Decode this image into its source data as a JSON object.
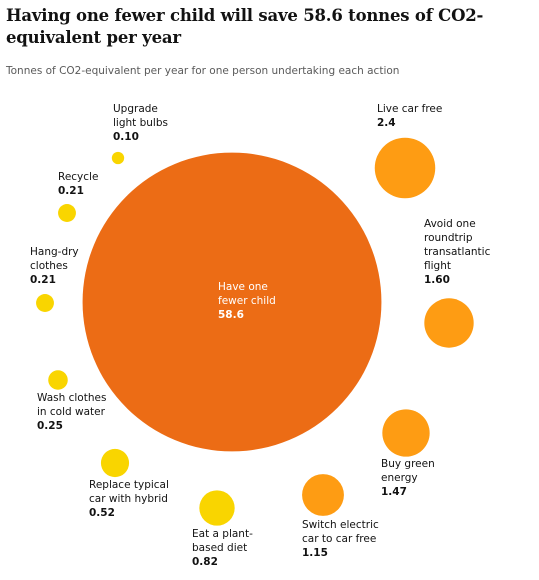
{
  "header": {
    "title": "Having one fewer child will save 58.6 tonnes of CO2-equivalent per year",
    "subtitle": "Tonnes of CO2-equivalent per year for one person undertaking each action"
  },
  "colors": {
    "large": "#ec6c15",
    "medium": "#fe9c13",
    "small": "#f9d500",
    "label": "#121212",
    "label_on_fill": "#ffffff"
  },
  "chart_data": {
    "type": "bubble",
    "title": "Having one fewer child will save 58.6 tonnes of CO2-equivalent per year",
    "subtitle": "Tonnes of CO2-equivalent per year for one person undertaking each action",
    "unit": "tonnes of CO2-equivalent per year",
    "items": [
      {
        "label": [
          "Have one",
          "fewer child"
        ],
        "value": 58.6,
        "value_label": "58.6",
        "color": "#ec6c15"
      },
      {
        "label": [
          "Live car free"
        ],
        "value": 2.4,
        "value_label": "2.4",
        "color": "#fe9c13"
      },
      {
        "label": [
          "Avoid one",
          "roundtrip",
          "transatlantic",
          "flight"
        ],
        "value": 1.6,
        "value_label": "1.60",
        "color": "#fe9c13"
      },
      {
        "label": [
          "Buy green",
          "energy"
        ],
        "value": 1.47,
        "value_label": "1.47",
        "color": "#fe9c13"
      },
      {
        "label": [
          "Switch electric",
          "car to car free"
        ],
        "value": 1.15,
        "value_label": "1.15",
        "color": "#fe9c13"
      },
      {
        "label": [
          "Eat a plant-",
          "based diet"
        ],
        "value": 0.82,
        "value_label": "0.82",
        "color": "#f9d500"
      },
      {
        "label": [
          "Replace typical",
          "car with hybrid"
        ],
        "value": 0.52,
        "value_label": "0.52",
        "color": "#f9d500"
      },
      {
        "label": [
          "Wash clothes",
          "in cold water"
        ],
        "value": 0.25,
        "value_label": "0.25",
        "color": "#f9d500"
      },
      {
        "label": [
          "Hang-dry",
          "clothes"
        ],
        "value": 0.21,
        "value_label": "0.21",
        "color": "#f9d500"
      },
      {
        "label": [
          "Recycle"
        ],
        "value": 0.21,
        "value_label": "0.21",
        "color": "#f9d500"
      },
      {
        "label": [
          "Upgrade",
          "light bulbs"
        ],
        "value": 0.1,
        "value_label": "0.10",
        "color": "#f9d500"
      }
    ]
  }
}
